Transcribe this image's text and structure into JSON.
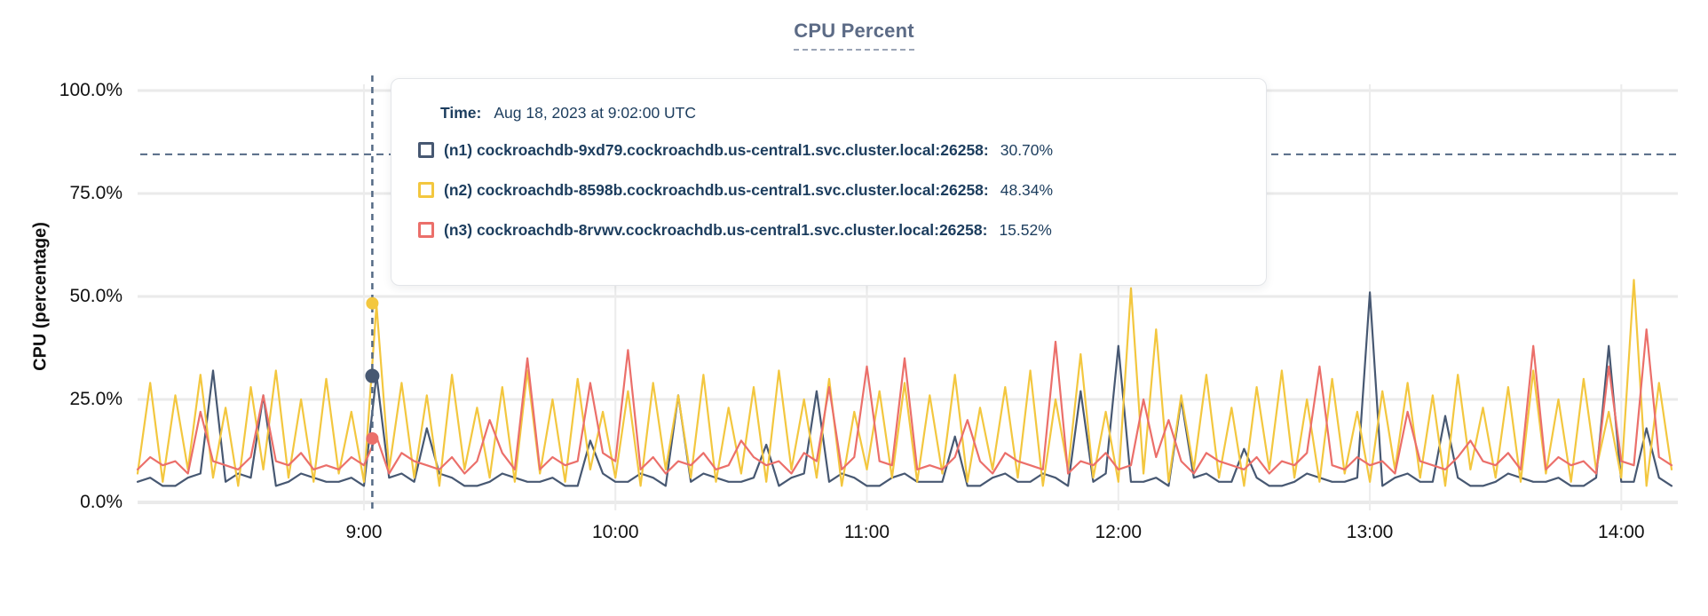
{
  "title": "CPU Percent",
  "tooltip": {
    "time_label": "Time:",
    "time_value": "Aug 18, 2023 at 9:02:00 UTC"
  },
  "chart_data": {
    "type": "line",
    "title": "CPU Percent",
    "ylabel": "CPU (percentage)",
    "xlabel": "",
    "ylim": [
      0,
      100
    ],
    "grid": true,
    "legend_position": "tooltip-overlay",
    "x_range": {
      "start": "8:06",
      "end": "14:12",
      "total_minutes": 366
    },
    "yticks": [
      {
        "value": 100,
        "label": "100.0%"
      },
      {
        "value": 75,
        "label": "75.0%"
      },
      {
        "value": 50,
        "label": "50.0%"
      },
      {
        "value": 25,
        "label": "25.0%"
      },
      {
        "value": 0,
        "label": "0.0%"
      }
    ],
    "xticks": [
      {
        "label": "9:00",
        "f": 0.14754
      },
      {
        "label": "10:00",
        "f": 0.31148
      },
      {
        "label": "11:00",
        "f": 0.47541
      },
      {
        "label": "12:00",
        "f": 0.63934
      },
      {
        "label": "13:00",
        "f": 0.80328
      },
      {
        "label": "14:00",
        "f": 0.96721
      }
    ],
    "threshold_pct": 84.5,
    "cursor": {
      "time": "9:02",
      "f": 0.15301
    },
    "colors": {
      "grid": "#eaeaea",
      "grid_vertical": "#ececec",
      "dashed_guides": "#546a85",
      "title": "#5c6b86",
      "tooltip_text": "#1c3d5e",
      "axis_text": "#111111"
    },
    "series": [
      {
        "id": "n1",
        "label": "(n1) cockroachdb-9xd79.cockroachdb.us-central1.svc.cluster.local:26258:",
        "cursor_value": "30.70%",
        "cursor_pct": 30.7,
        "color": "#475872",
        "values": [
          5,
          6,
          4,
          4,
          6,
          7,
          32,
          5,
          7,
          6,
          26,
          4,
          5,
          7,
          6,
          5,
          5,
          6,
          4,
          31,
          6,
          7,
          5,
          18,
          7,
          6,
          4,
          4,
          5,
          7,
          6,
          5,
          5,
          6,
          4,
          4,
          15,
          7,
          5,
          5,
          7,
          6,
          4,
          26,
          5,
          7,
          6,
          5,
          5,
          6,
          14,
          4,
          6,
          7,
          27,
          5,
          7,
          6,
          4,
          4,
          6,
          7,
          5,
          5,
          5,
          16,
          4,
          4,
          6,
          7,
          5,
          5,
          7,
          6,
          4,
          27,
          5,
          7,
          38,
          5,
          5,
          6,
          4,
          25,
          6,
          7,
          5,
          5,
          13,
          6,
          4,
          4,
          5,
          7,
          6,
          5,
          5,
          6,
          51,
          4,
          6,
          7,
          5,
          5,
          21,
          6,
          4,
          4,
          5,
          7,
          6,
          5,
          5,
          6,
          4,
          4,
          6,
          38,
          5,
          5,
          18,
          6,
          4
        ]
      },
      {
        "id": "n2",
        "label": "(n2) cockroachdb-8598b.cockroachdb.us-central1.svc.cluster.local:26258:",
        "cursor_value": "48.34%",
        "cursor_pct": 48.34,
        "color": "#f3c73f",
        "values": [
          7,
          29,
          5,
          26,
          8,
          31,
          6,
          23,
          4,
          28,
          8,
          32,
          6,
          25,
          5,
          30,
          7,
          22,
          5,
          48,
          8,
          29,
          6,
          26,
          4,
          31,
          8,
          23,
          6,
          28,
          5,
          32,
          7,
          25,
          5,
          30,
          8,
          22,
          6,
          27,
          4,
          29,
          8,
          26,
          6,
          31,
          5,
          23,
          7,
          28,
          5,
          32,
          8,
          25,
          6,
          30,
          4,
          22,
          8,
          27,
          6,
          29,
          5,
          26,
          7,
          31,
          5,
          23,
          8,
          28,
          6,
          32,
          4,
          25,
          8,
          36,
          6,
          22,
          5,
          52,
          7,
          42,
          5,
          26,
          8,
          31,
          6,
          23,
          4,
          28,
          8,
          32,
          6,
          25,
          5,
          30,
          7,
          22,
          5,
          27,
          8,
          29,
          6,
          26,
          4,
          31,
          8,
          23,
          6,
          28,
          5,
          32,
          7,
          25,
          5,
          30,
          8,
          22,
          6,
          54,
          4,
          29,
          8
        ]
      },
      {
        "id": "n3",
        "label": "(n3) cockroachdb-8rvwv.cockroachdb.us-central1.svc.cluster.local:26258:",
        "cursor_value": "15.52%",
        "cursor_pct": 15.52,
        "color": "#eb6f6a",
        "values": [
          8,
          11,
          9,
          10,
          7,
          22,
          10,
          9,
          8,
          11,
          26,
          10,
          9,
          12,
          8,
          9,
          8,
          11,
          9,
          16,
          7,
          12,
          10,
          9,
          8,
          11,
          7,
          10,
          20,
          12,
          8,
          35,
          8,
          11,
          9,
          10,
          29,
          12,
          10,
          37,
          8,
          11,
          7,
          10,
          9,
          12,
          8,
          9,
          15,
          11,
          9,
          10,
          7,
          12,
          10,
          28,
          8,
          11,
          33,
          10,
          9,
          35,
          8,
          9,
          8,
          11,
          20,
          10,
          7,
          12,
          10,
          9,
          8,
          39,
          7,
          10,
          9,
          12,
          8,
          9,
          25,
          11,
          20,
          10,
          7,
          12,
          10,
          9,
          8,
          11,
          7,
          10,
          9,
          12,
          33,
          9,
          8,
          11,
          9,
          10,
          7,
          22,
          10,
          9,
          8,
          11,
          15,
          10,
          9,
          12,
          8,
          38,
          8,
          11,
          9,
          10,
          7,
          33,
          10,
          9,
          42,
          11,
          9
        ]
      }
    ]
  }
}
